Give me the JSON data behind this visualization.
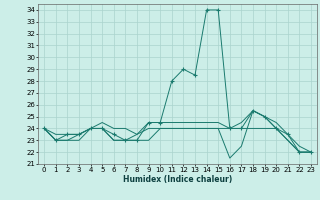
{
  "title": "",
  "xlabel": "Humidex (Indice chaleur)",
  "background_color": "#cceee8",
  "grid_color": "#aad4ce",
  "line_color": "#1a7a6e",
  "xlim": [
    -0.5,
    23.5
  ],
  "ylim": [
    21,
    34.5
  ],
  "yticks": [
    21,
    22,
    23,
    24,
    25,
    26,
    27,
    28,
    29,
    30,
    31,
    32,
    33,
    34
  ],
  "xticks": [
    0,
    1,
    2,
    3,
    4,
    5,
    6,
    7,
    8,
    9,
    10,
    11,
    12,
    13,
    14,
    15,
    16,
    17,
    18,
    19,
    20,
    21,
    22,
    23
  ],
  "curves": [
    {
      "x": [
        0,
        1,
        2,
        3,
        4,
        5,
        6,
        7,
        8,
        9,
        10,
        11,
        12,
        13,
        14,
        15,
        16,
        17,
        18,
        19,
        20,
        21,
        22,
        23
      ],
      "y": [
        24,
        23,
        23.5,
        23.5,
        24,
        24,
        23.5,
        23,
        23,
        24.5,
        24.5,
        28,
        29,
        28.5,
        34,
        34,
        24,
        24,
        25.5,
        25,
        24,
        23.5,
        22,
        22
      ],
      "marker": "+"
    },
    {
      "x": [
        0,
        1,
        2,
        3,
        4,
        5,
        6,
        7,
        8,
        9,
        10,
        11,
        12,
        13,
        14,
        15,
        16,
        17,
        18,
        19,
        20,
        21,
        22,
        23
      ],
      "y": [
        24,
        23,
        23,
        23,
        24,
        24,
        23,
        23,
        23,
        23,
        24,
        24,
        24,
        24,
        24,
        24,
        24,
        24,
        24,
        24,
        24,
        23,
        22,
        22
      ],
      "marker": null
    },
    {
      "x": [
        0,
        1,
        2,
        3,
        4,
        5,
        6,
        7,
        8,
        9,
        10,
        11,
        12,
        13,
        14,
        15,
        16,
        17,
        18,
        19,
        20,
        21,
        22,
        23
      ],
      "y": [
        24,
        23.5,
        23.5,
        23.5,
        24,
        24.5,
        24,
        24,
        23.5,
        24.5,
        24.5,
        24.5,
        24.5,
        24.5,
        24.5,
        24.5,
        24,
        24.5,
        25.5,
        25,
        24.5,
        23.5,
        22.5,
        22
      ],
      "marker": null
    },
    {
      "x": [
        0,
        1,
        2,
        3,
        4,
        5,
        6,
        7,
        8,
        9,
        10,
        11,
        12,
        13,
        14,
        15,
        16,
        17,
        18,
        19,
        20,
        21,
        22,
        23
      ],
      "y": [
        24,
        23,
        23,
        23.5,
        24,
        24,
        23,
        23,
        23.5,
        24,
        24,
        24,
        24,
        24,
        24,
        24,
        21.5,
        22.5,
        25.5,
        25,
        24,
        23,
        22,
        22
      ],
      "marker": null
    }
  ],
  "figsize": [
    3.2,
    2.0
  ],
  "dpi": 100
}
